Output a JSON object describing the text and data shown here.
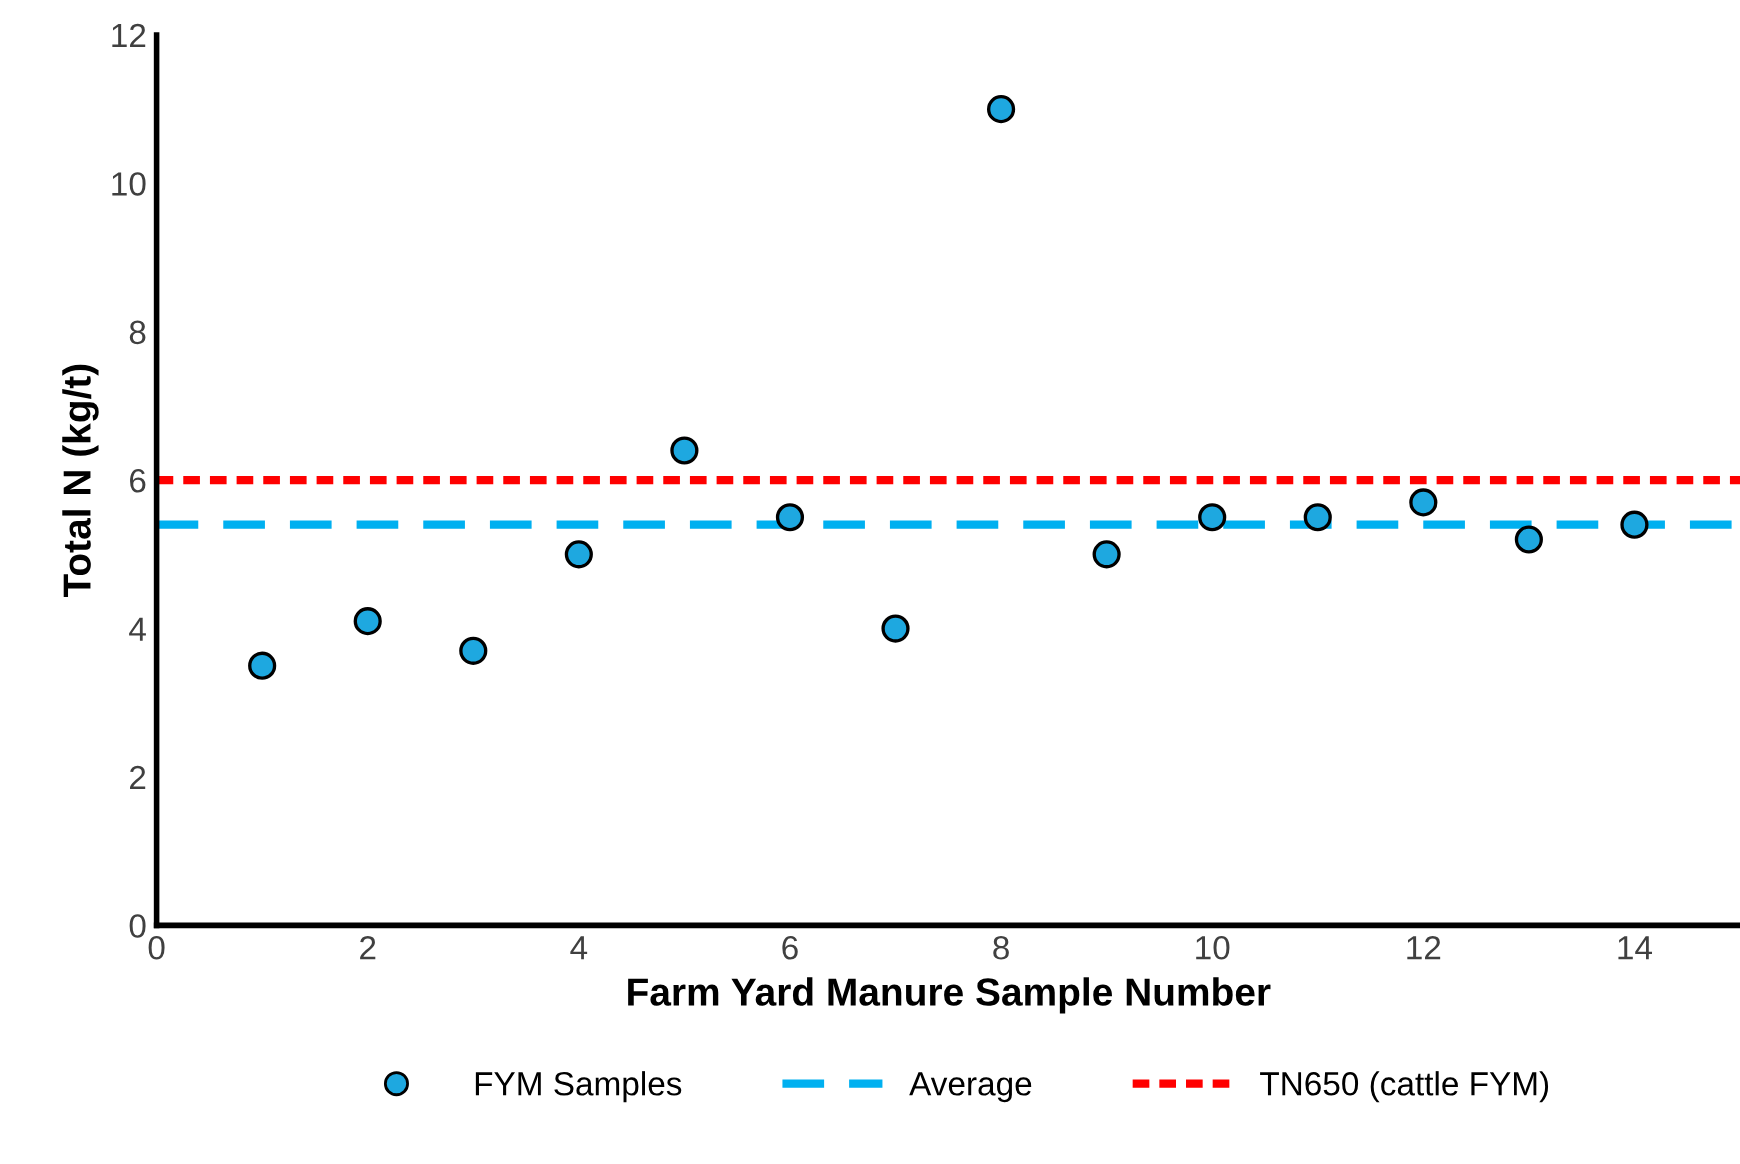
{
  "chart_data": {
    "type": "scatter",
    "xlabel": "Farm Yard Manure Sample Number",
    "ylabel": "Total N (kg/t)",
    "x": [
      1,
      2,
      3,
      4,
      5,
      6,
      7,
      8,
      9,
      10,
      11,
      12,
      13,
      14
    ],
    "series": [
      {
        "name": "FYM Samples",
        "color": "#1ea8e0",
        "values": [
          3.5,
          4.1,
          3.7,
          5.0,
          6.4,
          5.5,
          4.0,
          11.0,
          5.0,
          5.5,
          5.5,
          5.7,
          5.2,
          5.4
        ]
      }
    ],
    "marker": "circle",
    "ref_lines": [
      {
        "axis": "y",
        "value": 5.4,
        "label": "Average",
        "color": "#00b0f0",
        "line_style": "dashed"
      },
      {
        "axis": "y",
        "value": 6.0,
        "label": "TN650 (cattle FYM)",
        "color": "#ff0000",
        "line_style": "dotted"
      }
    ],
    "xlim": [
      0,
      15
    ],
    "xticks": [
      0,
      2,
      4,
      6,
      8,
      10,
      12,
      14
    ],
    "ylim": [
      0,
      12
    ],
    "yticks": [
      0,
      2,
      4,
      6,
      8,
      10,
      12
    ],
    "grid": false,
    "legend": "bottom"
  }
}
